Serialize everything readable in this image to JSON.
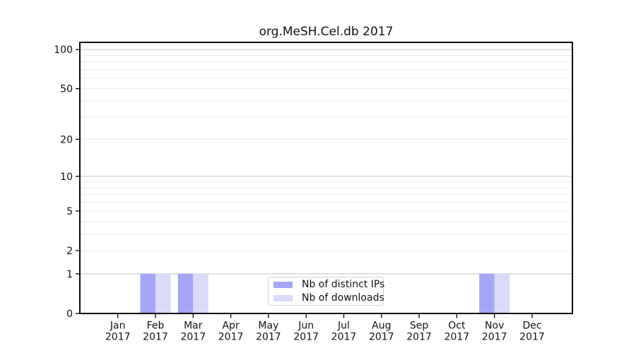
{
  "chart_data": {
    "type": "bar",
    "title": "org.MeSH.Cel.db 2017",
    "categories": [
      "Jan 2017",
      "Feb 2017",
      "Mar 2017",
      "Apr 2017",
      "May 2017",
      "Jun 2017",
      "Jul 2017",
      "Aug 2017",
      "Sep 2017",
      "Oct 2017",
      "Nov 2017",
      "Dec 2017"
    ],
    "series": [
      {
        "name": "Nb of distinct IPs",
        "color": "#a6a6f6",
        "values": [
          0,
          1,
          1,
          0,
          0,
          0,
          0,
          0,
          0,
          0,
          1,
          0
        ]
      },
      {
        "name": "Nb of downloads",
        "color": "#dadaf9",
        "values": [
          0,
          1,
          1,
          0,
          0,
          0,
          0,
          0,
          0,
          0,
          1,
          0
        ]
      }
    ],
    "xlabel": "",
    "ylabel": "",
    "yscale": "log1p",
    "ylim": [
      0,
      114
    ],
    "yticks": [
      0,
      1,
      2,
      5,
      10,
      20,
      50,
      100
    ],
    "grid": {
      "major_values": [
        1,
        10,
        100
      ],
      "minor_values": [
        2,
        3,
        4,
        5,
        6,
        7,
        8,
        9,
        20,
        30,
        40,
        50,
        60,
        70,
        80,
        90
      ],
      "major_color": "#c4c4c4",
      "minor_color": "#eaeaea"
    },
    "legend_position": "inside-bottom-center",
    "colors": {
      "axis": "#000000",
      "text": "#111111",
      "background": "#ffffff"
    }
  }
}
